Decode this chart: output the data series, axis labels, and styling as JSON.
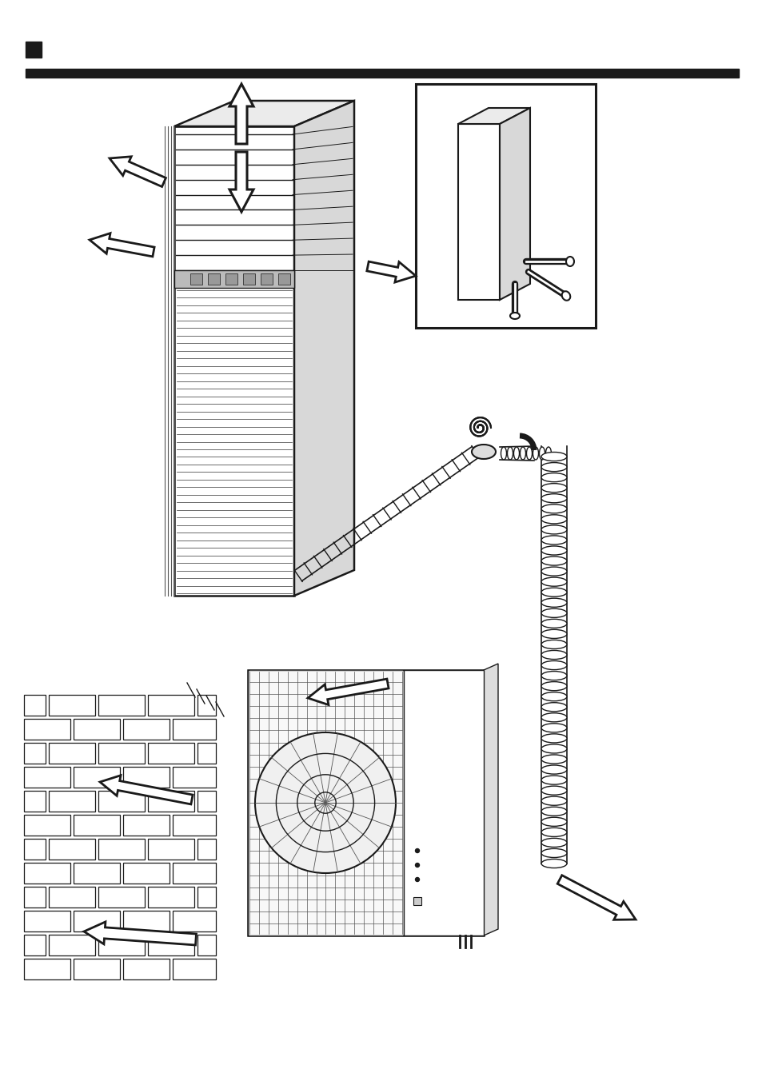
{
  "bg_color": "#ffffff",
  "line_color": "#1a1a1a",
  "fig_width": 9.54,
  "fig_height": 13.57,
  "dpi": 100
}
